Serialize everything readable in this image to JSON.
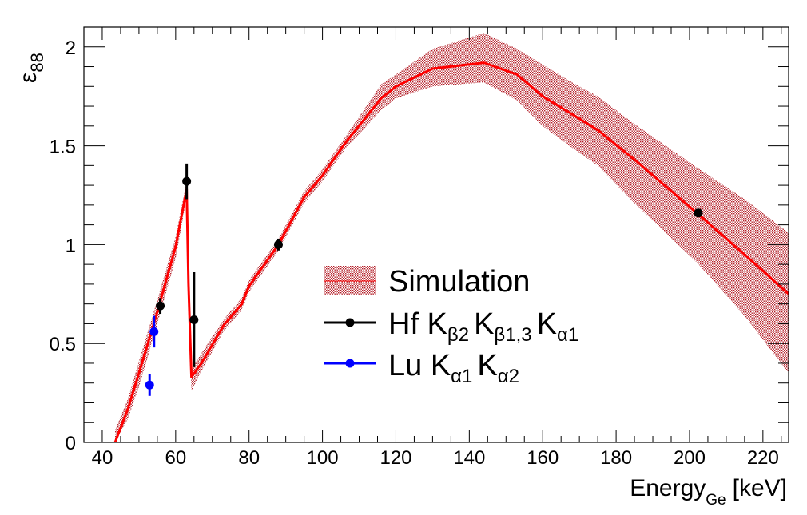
{
  "chart_data": {
    "type": "line",
    "title": "",
    "xlabel": {
      "main": "Energy",
      "sub": "Ge",
      "unit": "[keV]"
    },
    "ylabel": {
      "main": "ε",
      "sub": "88"
    },
    "xlim": [
      35,
      227
    ],
    "ylim": [
      0,
      2.1
    ],
    "x_ticks": [
      40,
      60,
      80,
      100,
      120,
      140,
      160,
      180,
      200,
      220
    ],
    "x_tick_labels": [
      "40",
      "60",
      "80",
      "100",
      "120",
      "140",
      "160",
      "180",
      "200",
      "220"
    ],
    "y_ticks": [
      0,
      0.5,
      1,
      1.5,
      2
    ],
    "y_tick_labels": [
      "0",
      "0.5",
      "1",
      "1.5",
      "2"
    ],
    "simulation": {
      "name": "Simulation",
      "color": "#ff0000",
      "band_color": "#b41e28",
      "points": [
        [
          43.5,
          0.0,
          0.0,
          0.06
        ],
        [
          47,
          0.17,
          0.12,
          0.22
        ],
        [
          50,
          0.35,
          0.28,
          0.41
        ],
        [
          55,
          0.66,
          0.6,
          0.72
        ],
        [
          60,
          0.99,
          0.93,
          1.04
        ],
        [
          63,
          1.28,
          1.24,
          1.32
        ],
        [
          63.5,
          0.8,
          0.7,
          0.88
        ],
        [
          64.3,
          0.33,
          0.26,
          0.37
        ],
        [
          67,
          0.4,
          0.36,
          0.45
        ],
        [
          73,
          0.59,
          0.56,
          0.62
        ],
        [
          78,
          0.7,
          0.67,
          0.73
        ],
        [
          80,
          0.79,
          0.76,
          0.82
        ],
        [
          88,
          1.0,
          0.97,
          1.03
        ],
        [
          95,
          1.24,
          1.21,
          1.27
        ],
        [
          100,
          1.35,
          1.32,
          1.38
        ],
        [
          106,
          1.51,
          1.48,
          1.54
        ],
        [
          116,
          1.74,
          1.68,
          1.81
        ],
        [
          120,
          1.8,
          1.74,
          1.86
        ],
        [
          130,
          1.89,
          1.8,
          1.99
        ],
        [
          144,
          1.92,
          1.82,
          2.07
        ],
        [
          153,
          1.86,
          1.73,
          1.99
        ],
        [
          160,
          1.75,
          1.6,
          1.91
        ],
        [
          168,
          1.66,
          1.49,
          1.82
        ],
        [
          175,
          1.58,
          1.4,
          1.75
        ],
        [
          185,
          1.43,
          1.21,
          1.61
        ],
        [
          202,
          1.16,
          0.91,
          1.39
        ],
        [
          215,
          0.95,
          0.64,
          1.23
        ],
        [
          227,
          0.75,
          0.35,
          1.06
        ]
      ]
    },
    "series": [
      {
        "name": "Hf K",
        "subs": [
          "β2",
          "β1,3",
          "α1"
        ],
        "color": "#000000",
        "points": [
          {
            "x": 55.8,
            "y": 0.69,
            "err": 0.04
          },
          {
            "x": 63.0,
            "y": 1.32,
            "err": 0.09
          },
          {
            "x": 65.0,
            "y": 0.62,
            "err": 0.24
          },
          {
            "x": 88.0,
            "y": 1.0,
            "err": 0.03
          },
          {
            "x": 202.4,
            "y": 1.16,
            "err": 0.015
          }
        ]
      },
      {
        "name": "Lu K",
        "subs": [
          "α1",
          "α2"
        ],
        "color": "#0000ff",
        "points": [
          {
            "x": 52.9,
            "y": 0.29,
            "err": 0.055
          },
          {
            "x": 54.1,
            "y": 0.56,
            "err": 0.08
          }
        ]
      }
    ],
    "legend": {
      "position": "center",
      "entries": [
        {
          "label": "Simulation"
        },
        {
          "label": "Hf K",
          "subs": [
            "β2",
            "β1,3",
            "α1"
          ]
        },
        {
          "label": "Lu K",
          "subs": [
            "α1",
            "α2"
          ]
        }
      ]
    }
  }
}
